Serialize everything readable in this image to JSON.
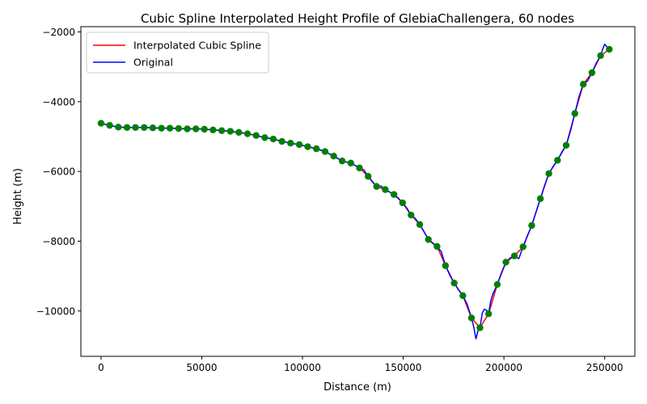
{
  "chart_data": {
    "type": "line",
    "title": "Cubic Spline Interpolated Height Profile of GlebiaChallengera, 60 nodes",
    "xlabel": "Distance (m)",
    "ylabel": "Height (m)",
    "xlim": [
      -10000,
      265000
    ],
    "ylim": [
      -11300,
      -1850
    ],
    "x_ticks": [
      0,
      50000,
      100000,
      150000,
      200000,
      250000
    ],
    "y_ticks": [
      -10000,
      -8000,
      -6000,
      -4000,
      -2000
    ],
    "x_tick_labels": [
      "0",
      "50000",
      "100000",
      "150000",
      "200000",
      "250000"
    ],
    "y_tick_labels": [
      "−10000",
      "−8000",
      "−6000",
      "−4000",
      "−2000"
    ],
    "grid": false,
    "legend_position": "top-left",
    "series": [
      {
        "name": "Interpolated Cubic Spline",
        "color": "#ff0000",
        "x": [
          0,
          4300,
          8600,
          12900,
          17100,
          21400,
          25700,
          30000,
          34200,
          38500,
          42800,
          47100,
          51300,
          55600,
          59900,
          64200,
          68400,
          72700,
          77000,
          81300,
          85500,
          89800,
          94100,
          98400,
          102600,
          106900,
          111200,
          115500,
          119700,
          124000,
          128300,
          132600,
          136800,
          141100,
          145400,
          149700,
          153900,
          158200,
          162500,
          166800,
          171000,
          175300,
          179600,
          183900,
          188100,
          192400,
          196700,
          201000,
          205200,
          209500,
          213800,
          218100,
          222300,
          226600,
          230900,
          235200,
          239400,
          243700,
          248000,
          252300
        ],
        "values": [
          -4620,
          -4680,
          -4730,
          -4740,
          -4740,
          -4740,
          -4750,
          -4760,
          -4760,
          -4770,
          -4780,
          -4780,
          -4790,
          -4810,
          -4830,
          -4850,
          -4880,
          -4920,
          -4970,
          -5030,
          -5070,
          -5140,
          -5190,
          -5230,
          -5290,
          -5350,
          -5430,
          -5560,
          -5700,
          -5760,
          -5900,
          -6140,
          -6430,
          -6520,
          -6660,
          -6900,
          -7250,
          -7520,
          -7950,
          -8150,
          -8700,
          -9200,
          -9560,
          -10200,
          -10480,
          -10080,
          -9240,
          -8600,
          -8420,
          -8160,
          -7550,
          -6780,
          -6060,
          -5680,
          -5250,
          -4340,
          -3500,
          -3170,
          -2680,
          -2500
        ]
      },
      {
        "name": "Original",
        "color": "#0000ff",
        "x": [
          0,
          4300,
          8600,
          12900,
          17100,
          21400,
          25700,
          30000,
          34200,
          38500,
          42800,
          47100,
          51300,
          55600,
          59900,
          64200,
          68400,
          72700,
          77000,
          81300,
          85500,
          89800,
          94100,
          98400,
          102600,
          106900,
          111200,
          115500,
          119700,
          124000,
          128300,
          130500,
          132600,
          134700,
          136800,
          139000,
          141100,
          145400,
          147500,
          149700,
          151800,
          153900,
          156000,
          158200,
          160300,
          162500,
          164600,
          166800,
          168900,
          171000,
          173200,
          175300,
          176400,
          177500,
          179600,
          181700,
          183900,
          185000,
          186100,
          187200,
          188100,
          189300,
          190300,
          191400,
          192400,
          193500,
          194600,
          196700,
          198800,
          201000,
          203100,
          205200,
          207400,
          209500,
          211600,
          213800,
          216000,
          218100,
          220200,
          222300,
          224500,
          226600,
          228700,
          230900,
          233000,
          235200,
          237300,
          239400,
          241600,
          243700,
          245800,
          248000,
          249000,
          250000,
          251000,
          252000,
          252300
        ],
        "values": [
          -4620,
          -4680,
          -4730,
          -4740,
          -4740,
          -4740,
          -4750,
          -4760,
          -4760,
          -4770,
          -4780,
          -4780,
          -4790,
          -4810,
          -4830,
          -4850,
          -4880,
          -4920,
          -4970,
          -5030,
          -5070,
          -5140,
          -5190,
          -5230,
          -5290,
          -5350,
          -5430,
          -5560,
          -5700,
          -5760,
          -5900,
          -5960,
          -6140,
          -6300,
          -6430,
          -6420,
          -6520,
          -6660,
          -6760,
          -6900,
          -7050,
          -7250,
          -7350,
          -7520,
          -7720,
          -7950,
          -8060,
          -8150,
          -8300,
          -8700,
          -8980,
          -9200,
          -9300,
          -9400,
          -9560,
          -9800,
          -10200,
          -10450,
          -10800,
          -10550,
          -10480,
          -10050,
          -9950,
          -9980,
          -10080,
          -9700,
          -9500,
          -9240,
          -8900,
          -8600,
          -8480,
          -8420,
          -8500,
          -8160,
          -7850,
          -7550,
          -7150,
          -6780,
          -6400,
          -6060,
          -5850,
          -5680,
          -5450,
          -5250,
          -4850,
          -4340,
          -3850,
          -3500,
          -3400,
          -3170,
          -2900,
          -2680,
          -2500,
          -2350,
          -2420,
          -2500,
          -2500
        ]
      }
    ],
    "nodes": {
      "color": "#008000",
      "x": [
        0,
        4300,
        8600,
        12900,
        17100,
        21400,
        25700,
        30000,
        34200,
        38500,
        42800,
        47100,
        51300,
        55600,
        59900,
        64200,
        68400,
        72700,
        77000,
        81300,
        85500,
        89800,
        94100,
        98400,
        102600,
        106900,
        111200,
        115500,
        119700,
        124000,
        128300,
        132600,
        136800,
        141100,
        145400,
        149700,
        153900,
        158200,
        162500,
        166800,
        171000,
        175300,
        179600,
        183900,
        188100,
        192400,
        196700,
        201000,
        205200,
        209500,
        213800,
        218100,
        222300,
        226600,
        230900,
        235200,
        239400,
        243700,
        248000,
        252300
      ],
      "values": [
        -4620,
        -4680,
        -4730,
        -4740,
        -4740,
        -4740,
        -4750,
        -4760,
        -4760,
        -4770,
        -4780,
        -4780,
        -4790,
        -4810,
        -4830,
        -4850,
        -4880,
        -4920,
        -4970,
        -5030,
        -5070,
        -5140,
        -5190,
        -5230,
        -5290,
        -5350,
        -5430,
        -5560,
        -5700,
        -5760,
        -5900,
        -6140,
        -6430,
        -6520,
        -6660,
        -6900,
        -7250,
        -7520,
        -7950,
        -8150,
        -8700,
        -9200,
        -9560,
        -10200,
        -10480,
        -10080,
        -9240,
        -8600,
        -8420,
        -8160,
        -7550,
        -6780,
        -6060,
        -5680,
        -5250,
        -4340,
        -3500,
        -3170,
        -2680,
        -2500
      ]
    }
  }
}
